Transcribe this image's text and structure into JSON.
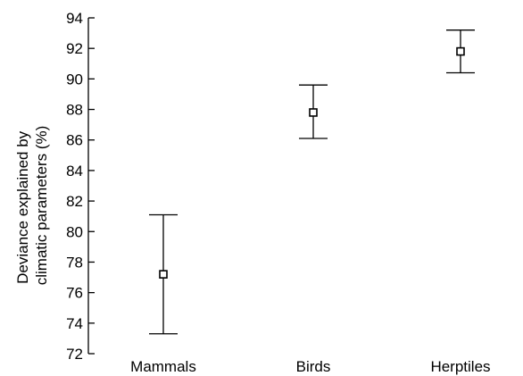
{
  "chart_data": {
    "type": "errorbar",
    "categories": [
      "Mammals",
      "Birds",
      "Herptiles"
    ],
    "values": [
      77.2,
      87.8,
      91.8
    ],
    "error_low": [
      73.3,
      86.1,
      90.4
    ],
    "error_high": [
      81.1,
      89.6,
      93.2
    ],
    "ylabel_line1": "Deviance explained by",
    "ylabel_line2": "climatic parameters (%)",
    "xlabel": "",
    "ylim": [
      72,
      94
    ],
    "yticks": [
      72,
      74,
      76,
      78,
      80,
      82,
      84,
      86,
      88,
      90,
      92,
      94
    ],
    "grid": false,
    "marker": "open-square",
    "colors": {
      "ink": "#000000",
      "background": "#ffffff"
    }
  }
}
